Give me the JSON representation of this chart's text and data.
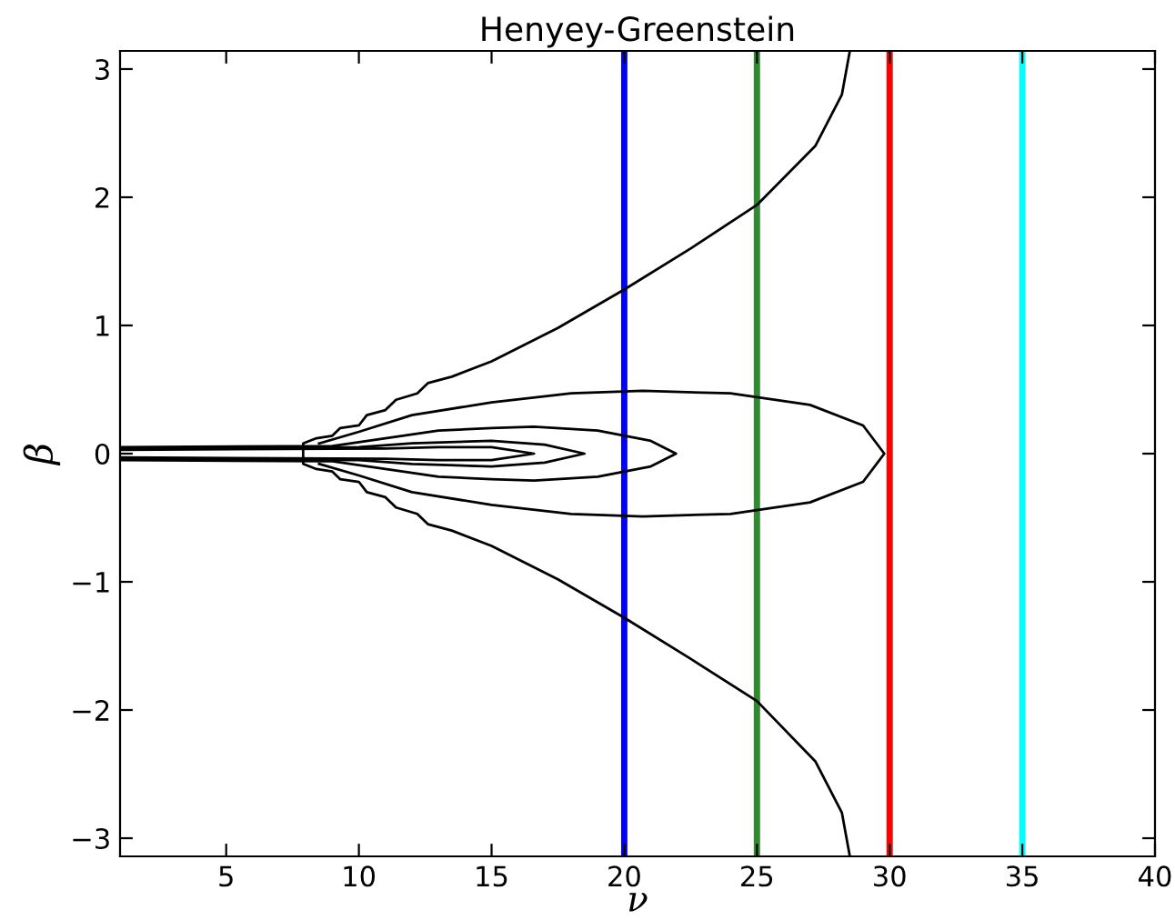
{
  "chart_data": {
    "type": "line",
    "title": "Henyey-Greenstein",
    "xlabel": "ν",
    "ylabel": "β",
    "xlim": [
      1,
      40
    ],
    "xticks": [
      5,
      10,
      15,
      20,
      25,
      30,
      35,
      40
    ],
    "ylim": [
      -3.14159,
      3.14159
    ],
    "yticks": [
      {
        "value": -3,
        "label": "−3"
      },
      {
        "value": -2,
        "label": "−2"
      },
      {
        "value": -1,
        "label": "−1"
      },
      0,
      1,
      2,
      3
    ],
    "grid": false,
    "marker": "none",
    "line_style": "solid",
    "series": [
      {
        "color": "#000000",
        "x": [
          28.5,
          28.2,
          27.2,
          25,
          22.5,
          20,
          17.5,
          15,
          13.5,
          12.6,
          12.2,
          11.4,
          11.0,
          10.3,
          10.0,
          9.3,
          9.0,
          8.4,
          7.9,
          7.9,
          8.4,
          9.0,
          9.3,
          10.0,
          10.3,
          11.0,
          11.4,
          12.2,
          12.6,
          13.5,
          15,
          17.5,
          20,
          22.5,
          25,
          27.2,
          28.2,
          28.5
        ],
        "values": [
          3.14,
          2.8,
          2.4,
          1.94,
          1.6,
          1.28,
          0.98,
          0.72,
          0.6,
          0.55,
          0.47,
          0.42,
          0.34,
          0.3,
          0.22,
          0.2,
          0.14,
          0.12,
          0.08,
          -0.08,
          -0.12,
          -0.14,
          -0.2,
          -0.22,
          -0.3,
          -0.34,
          -0.42,
          -0.47,
          -0.55,
          -0.6,
          -0.72,
          -0.98,
          -1.28,
          -1.6,
          -1.93,
          -2.4,
          -2.8,
          -3.14
        ]
      },
      {
        "color": "#000000",
        "x": [
          8.5,
          10,
          12,
          15,
          18,
          20.7,
          24,
          27,
          29,
          29.8,
          29,
          27,
          24,
          20.7,
          18,
          15,
          12,
          10,
          8.5
        ],
        "values": [
          0.08,
          0.17,
          0.3,
          0.4,
          0.47,
          0.49,
          0.47,
          0.38,
          0.22,
          0,
          -0.22,
          -0.38,
          -0.47,
          -0.49,
          -0.47,
          -0.4,
          -0.3,
          -0.17,
          -0.08
        ]
      },
      {
        "color": "#000000",
        "x": [
          1,
          9,
          11,
          13,
          15,
          16.6,
          19,
          21,
          21.95,
          21,
          19,
          16.6,
          15,
          13,
          11,
          9,
          1
        ],
        "values": [
          0.05,
          0.06,
          0.12,
          0.18,
          0.2,
          0.21,
          0.18,
          0.1,
          0,
          -0.1,
          -0.18,
          -0.21,
          -0.2,
          -0.18,
          -0.12,
          -0.06,
          -0.05
        ]
      },
      {
        "color": "#000000",
        "x": [
          1,
          10,
          12,
          15,
          17,
          18.5,
          17,
          15,
          12,
          10,
          1
        ],
        "values": [
          0.04,
          0.05,
          0.08,
          0.1,
          0.07,
          0,
          -0.07,
          -0.1,
          -0.08,
          -0.05,
          -0.04
        ]
      },
      {
        "color": "#000000",
        "x": [
          1,
          11,
          13,
          15,
          16.6,
          15,
          13,
          11,
          1
        ],
        "values": [
          0.03,
          0.04,
          0.05,
          0.05,
          0,
          -0.05,
          -0.05,
          -0.04,
          -0.03
        ]
      }
    ],
    "ref_lines": [
      {
        "axis": "x",
        "value": 20,
        "color": "#0000ff"
      },
      {
        "axis": "x",
        "value": 25,
        "color": "#2e8b2e"
      },
      {
        "axis": "x",
        "value": 30,
        "color": "#ff0000"
      },
      {
        "axis": "x",
        "value": 35,
        "color": "#00ffff"
      }
    ]
  }
}
